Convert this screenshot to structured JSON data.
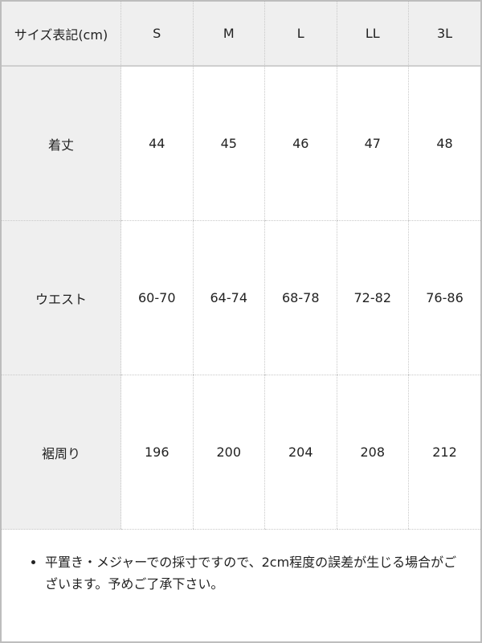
{
  "table": {
    "header": [
      "サイズ表記(cm)",
      "S",
      "M",
      "L",
      "LL",
      "3L"
    ],
    "rows": [
      {
        "label": "着丈",
        "values": [
          "44",
          "45",
          "46",
          "47",
          "48"
        ]
      },
      {
        "label": "ウエスト",
        "values": [
          "60-70",
          "64-74",
          "68-78",
          "72-82",
          "76-86"
        ]
      },
      {
        "label": "裾周り",
        "values": [
          "196",
          "200",
          "204",
          "208",
          "212"
        ]
      }
    ]
  },
  "note": "平置き・メジャーでの採寸ですので、2cm程度の誤差が生じる場合がございます。予めご了承下さい。"
}
